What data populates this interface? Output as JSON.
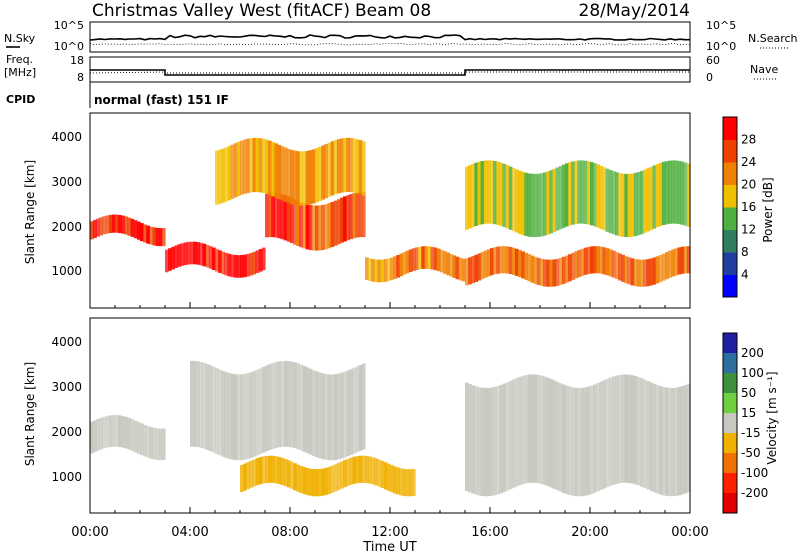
{
  "header": {
    "title": "Christmas Valley West (fitACF)",
    "beam": "Beam 08",
    "date": "28/May/2014"
  },
  "nsky_panel": {
    "left_label": "N.Sky",
    "right_label": "N.Search",
    "left_ticks": [
      "10^5",
      "10^0"
    ],
    "right_ticks": [
      "10^5",
      "10^0"
    ]
  },
  "freq_panel": {
    "left_label_line1": "Freq.",
    "left_label_line2": "[MHz]",
    "right_label": "Nave",
    "left_ticks": [
      "18",
      "8"
    ],
    "right_ticks": [
      "60",
      "0"
    ]
  },
  "cpid": {
    "label": "CPID",
    "value": "normal (fast) 151 IF"
  },
  "power_panel": {
    "ylabel": "Slant Range [km]",
    "yticks": [
      "4000",
      "3000",
      "2000",
      "1000"
    ],
    "colorbar_label": "Power [dB]",
    "colorbar_ticks": [
      "28",
      "24",
      "20",
      "16",
      "12",
      "8",
      "4"
    ],
    "colors": [
      "#0000ff",
      "#1f3f9f",
      "#2f7f5f",
      "#4faf3f",
      "#f0c000",
      "#f08000",
      "#f04000",
      "#ff0000"
    ]
  },
  "velocity_panel": {
    "ylabel": "Slant Range [km]",
    "yticks": [
      "4000",
      "3000",
      "2000",
      "1000"
    ],
    "colorbar_label": "Velocity [m s⁻¹]",
    "colorbar_ticks": [
      "200",
      "100",
      "50",
      "15",
      "-15",
      "-50",
      "-100",
      "-200"
    ],
    "colors": [
      "#1f1fa0",
      "#2f6f9f",
      "#3f8f3f",
      "#6fcf3f",
      "#c8c8c0",
      "#f0b000",
      "#f07000",
      "#ff2000",
      "#e00000"
    ]
  },
  "xaxis": {
    "label": "Time UT",
    "ticks": [
      "00:00",
      "04:00",
      "08:00",
      "12:00",
      "16:00",
      "20:00",
      "00:00"
    ]
  },
  "chart_data": {
    "type": "heatmap",
    "xlabel": "Time UT",
    "ylabel": "Slant Range [km]",
    "xlim": [
      "00:00",
      "24:00"
    ],
    "ylim": [
      180,
      4500
    ],
    "power_range_db": [
      0,
      32
    ],
    "velocity_range_ms": [
      -250,
      250
    ],
    "frequency_mhz": [
      {
        "start": "00:00",
        "end": "03:00",
        "value": 12.8
      },
      {
        "start": "03:00",
        "end": "15:00",
        "value": 10.8
      },
      {
        "start": "15:00",
        "end": "24:00",
        "value": 12.8
      }
    ],
    "power_bands": [
      {
        "start": "00:00",
        "end": "03:00",
        "range_km": [
          1700,
          2100
        ],
        "power_db": 28
      },
      {
        "start": "03:00",
        "end": "07:00",
        "range_km": [
          1000,
          1500
        ],
        "power_db": 30
      },
      {
        "start": "07:00",
        "end": "11:00",
        "range_km": [
          1600,
          2600
        ],
        "power_db": 26
      },
      {
        "start": "05:00",
        "end": "11:00",
        "range_km": [
          2600,
          3800
        ],
        "power_db": 20
      },
      {
        "start": "11:00",
        "end": "15:00",
        "range_km": [
          900,
          1400
        ],
        "power_db": 22
      },
      {
        "start": "15:00",
        "end": "24:00",
        "range_km": [
          800,
          1400
        ],
        "power_db": 24
      },
      {
        "start": "15:00",
        "end": "24:00",
        "range_km": [
          1900,
          3300
        ],
        "power_db": 16
      }
    ],
    "velocity_bands": [
      {
        "start": "00:00",
        "end": "03:00",
        "range_km": [
          1500,
          2200
        ],
        "velocity_ms": 0
      },
      {
        "start": "04:00",
        "end": "11:00",
        "range_km": [
          1500,
          3400
        ],
        "velocity_ms": 0
      },
      {
        "start": "06:00",
        "end": "13:00",
        "range_km": [
          700,
          1300
        ],
        "velocity_ms": -50
      },
      {
        "start": "15:00",
        "end": "24:00",
        "range_km": [
          700,
          3100
        ],
        "velocity_ms": 0
      }
    ]
  }
}
